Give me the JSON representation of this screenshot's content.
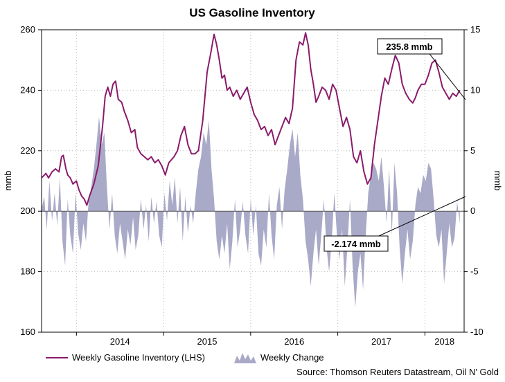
{
  "chart_data": {
    "type": "line+area",
    "title": "US Gasoline Inventory",
    "ylabel_left": "mmb",
    "ylabel_right": "mmb",
    "ylim_left": [
      160,
      260
    ],
    "ylim_right": [
      -10,
      15
    ],
    "yticks_left": [
      160,
      180,
      200,
      220,
      240,
      260
    ],
    "yticks_right": [
      -10,
      -5,
      0,
      5,
      10,
      15
    ],
    "x_domain": [
      2013.6,
      2018.45
    ],
    "x_boundaries": [
      2014.0,
      2015.0,
      2016.0,
      2017.0,
      2018.0
    ],
    "x_ticks": [
      {
        "label": "2014",
        "x": 2014.0
      },
      {
        "label": "2015",
        "x": 2015.0
      },
      {
        "label": "2016",
        "x": 2016.0
      },
      {
        "label": "2017",
        "x": 2017.0
      },
      {
        "label": "2018",
        "x": 2018.0
      }
    ],
    "series": [
      {
        "name": "Weekly Gasoline Inventory (LHS)",
        "axis": "left",
        "color": "#8b1a6b",
        "points": [
          [
            2013.6,
            211
          ],
          [
            2013.65,
            212.5
          ],
          [
            2013.68,
            211
          ],
          [
            2013.72,
            213
          ],
          [
            2013.76,
            214
          ],
          [
            2013.8,
            213
          ],
          [
            2013.83,
            218
          ],
          [
            2013.85,
            218.5
          ],
          [
            2013.88,
            214
          ],
          [
            2013.9,
            212
          ],
          [
            2013.93,
            211
          ],
          [
            2013.96,
            209
          ],
          [
            2014.0,
            210
          ],
          [
            2014.03,
            207
          ],
          [
            2014.06,
            205
          ],
          [
            2014.09,
            204
          ],
          [
            2014.12,
            202
          ],
          [
            2014.15,
            205
          ],
          [
            2014.2,
            209
          ],
          [
            2014.25,
            215
          ],
          [
            2014.3,
            228
          ],
          [
            2014.33,
            238
          ],
          [
            2014.36,
            241
          ],
          [
            2014.39,
            238
          ],
          [
            2014.42,
            242
          ],
          [
            2014.45,
            243
          ],
          [
            2014.48,
            237
          ],
          [
            2014.52,
            236
          ],
          [
            2014.55,
            233
          ],
          [
            2014.59,
            230
          ],
          [
            2014.63,
            226
          ],
          [
            2014.67,
            227
          ],
          [
            2014.7,
            221
          ],
          [
            2014.74,
            219
          ],
          [
            2014.78,
            218
          ],
          [
            2014.82,
            217
          ],
          [
            2014.86,
            218
          ],
          [
            2014.9,
            216
          ],
          [
            2014.94,
            217
          ],
          [
            2014.98,
            215
          ],
          [
            2015.02,
            212
          ],
          [
            2015.06,
            216
          ],
          [
            2015.12,
            218
          ],
          [
            2015.16,
            220
          ],
          [
            2015.2,
            225
          ],
          [
            2015.24,
            228
          ],
          [
            2015.28,
            222
          ],
          [
            2015.32,
            219
          ],
          [
            2015.36,
            219
          ],
          [
            2015.4,
            220
          ],
          [
            2015.45,
            230
          ],
          [
            2015.5,
            246
          ],
          [
            2015.54,
            252
          ],
          [
            2015.58,
            258.5
          ],
          [
            2015.61,
            255
          ],
          [
            2015.64,
            250
          ],
          [
            2015.67,
            244
          ],
          [
            2015.7,
            245
          ],
          [
            2015.73,
            240
          ],
          [
            2015.76,
            241
          ],
          [
            2015.8,
            238
          ],
          [
            2015.84,
            240
          ],
          [
            2015.88,
            237
          ],
          [
            2015.92,
            239
          ],
          [
            2015.96,
            241
          ],
          [
            2016.0,
            236
          ],
          [
            2016.04,
            232
          ],
          [
            2016.08,
            230
          ],
          [
            2016.12,
            227
          ],
          [
            2016.16,
            228
          ],
          [
            2016.2,
            225
          ],
          [
            2016.24,
            227
          ],
          [
            2016.28,
            222
          ],
          [
            2016.32,
            225
          ],
          [
            2016.36,
            228
          ],
          [
            2016.4,
            231
          ],
          [
            2016.44,
            229
          ],
          [
            2016.48,
            234
          ],
          [
            2016.52,
            250
          ],
          [
            2016.56,
            256
          ],
          [
            2016.6,
            255
          ],
          [
            2016.63,
            259
          ],
          [
            2016.66,
            255
          ],
          [
            2016.69,
            247
          ],
          [
            2016.72,
            242
          ],
          [
            2016.75,
            236
          ],
          [
            2016.78,
            238
          ],
          [
            2016.82,
            241
          ],
          [
            2016.86,
            240
          ],
          [
            2016.9,
            237
          ],
          [
            2016.94,
            242
          ],
          [
            2016.98,
            240
          ],
          [
            2017.02,
            234
          ],
          [
            2017.06,
            228
          ],
          [
            2017.1,
            231
          ],
          [
            2017.14,
            227
          ],
          [
            2017.18,
            218
          ],
          [
            2017.22,
            216
          ],
          [
            2017.26,
            220
          ],
          [
            2017.3,
            213
          ],
          [
            2017.34,
            209
          ],
          [
            2017.38,
            211
          ],
          [
            2017.42,
            222
          ],
          [
            2017.46,
            230
          ],
          [
            2017.5,
            238
          ],
          [
            2017.54,
            244
          ],
          [
            2017.58,
            242
          ],
          [
            2017.62,
            247
          ],
          [
            2017.66,
            251.5
          ],
          [
            2017.7,
            249
          ],
          [
            2017.74,
            242
          ],
          [
            2017.78,
            239
          ],
          [
            2017.82,
            237
          ],
          [
            2017.86,
            235.8
          ],
          [
            2017.89,
            237.5
          ],
          [
            2017.92,
            240
          ],
          [
            2017.96,
            242
          ],
          [
            2018.0,
            242
          ],
          [
            2018.04,
            245
          ],
          [
            2018.08,
            249
          ],
          [
            2018.12,
            250
          ],
          [
            2018.16,
            246
          ],
          [
            2018.2,
            241
          ],
          [
            2018.24,
            239
          ],
          [
            2018.28,
            237
          ],
          [
            2018.32,
            239
          ],
          [
            2018.36,
            238
          ],
          [
            2018.4,
            240
          ]
        ]
      },
      {
        "name": "Weekly Change",
        "axis": "right",
        "color": "#a9a9c8",
        "points": [
          [
            2013.6,
            0.2
          ],
          [
            2013.63,
            1.2
          ],
          [
            2013.66,
            -1.5
          ],
          [
            2013.69,
            2.5
          ],
          [
            2013.72,
            -0.8
          ],
          [
            2013.75,
            1.5
          ],
          [
            2013.78,
            -1.2
          ],
          [
            2013.81,
            2.8
          ],
          [
            2013.84,
            -2.5
          ],
          [
            2013.87,
            -4.5
          ],
          [
            2013.9,
            1.0
          ],
          [
            2013.93,
            -2.0
          ],
          [
            2013.96,
            -3.5
          ],
          [
            2013.99,
            1.5
          ],
          [
            2014.02,
            -1.8
          ],
          [
            2014.05,
            -3.2
          ],
          [
            2014.08,
            -1.0
          ],
          [
            2014.11,
            -2.5
          ],
          [
            2014.14,
            0.8
          ],
          [
            2014.17,
            2.0
          ],
          [
            2014.2,
            3.5
          ],
          [
            2014.23,
            5.5
          ],
          [
            2014.26,
            7.8
          ],
          [
            2014.29,
            5.5
          ],
          [
            2014.32,
            6.5
          ],
          [
            2014.35,
            2.0
          ],
          [
            2014.38,
            -1.5
          ],
          [
            2014.41,
            1.5
          ],
          [
            2014.44,
            -2.0
          ],
          [
            2014.47,
            -3.5
          ],
          [
            2014.5,
            -1.0
          ],
          [
            2014.53,
            -2.5
          ],
          [
            2014.56,
            -4.0
          ],
          [
            2014.59,
            -1.5
          ],
          [
            2014.62,
            -2.8
          ],
          [
            2014.65,
            -0.5
          ],
          [
            2014.68,
            -3.2
          ],
          [
            2014.71,
            -2.0
          ],
          [
            2014.74,
            1.0
          ],
          [
            2014.77,
            -1.5
          ],
          [
            2014.8,
            0.5
          ],
          [
            2014.83,
            -2.5
          ],
          [
            2014.86,
            1.2
          ],
          [
            2014.89,
            -1.0
          ],
          [
            2014.92,
            0.8
          ],
          [
            2014.95,
            -2.0
          ],
          [
            2014.98,
            -3.0
          ],
          [
            2015.01,
            1.5
          ],
          [
            2015.04,
            -0.8
          ],
          [
            2015.07,
            2.5
          ],
          [
            2015.1,
            0.5
          ],
          [
            2015.13,
            2.8
          ],
          [
            2015.16,
            -1.0
          ],
          [
            2015.19,
            2.0
          ],
          [
            2015.22,
            -2.5
          ],
          [
            2015.25,
            1.2
          ],
          [
            2015.28,
            -1.8
          ],
          [
            2015.31,
            0.5
          ],
          [
            2015.34,
            -1.0
          ],
          [
            2015.37,
            1.5
          ],
          [
            2015.4,
            3.5
          ],
          [
            2015.43,
            4.5
          ],
          [
            2015.46,
            6.5
          ],
          [
            2015.49,
            5.5
          ],
          [
            2015.52,
            7.5
          ],
          [
            2015.55,
            3.5
          ],
          [
            2015.58,
            1.0
          ],
          [
            2015.61,
            -2.5
          ],
          [
            2015.64,
            -4.0
          ],
          [
            2015.67,
            -2.0
          ],
          [
            2015.7,
            -3.5
          ],
          [
            2015.73,
            -1.0
          ],
          [
            2015.76,
            -4.8
          ],
          [
            2015.79,
            -2.5
          ],
          [
            2015.82,
            1.0
          ],
          [
            2015.85,
            -3.0
          ],
          [
            2015.88,
            -1.5
          ],
          [
            2015.91,
            0.8
          ],
          [
            2015.94,
            -2.0
          ],
          [
            2015.97,
            -3.5
          ],
          [
            2016.0,
            1.0
          ],
          [
            2016.03,
            -2.0
          ],
          [
            2016.06,
            0.5
          ],
          [
            2016.09,
            -3.5
          ],
          [
            2016.12,
            -4.5
          ],
          [
            2016.15,
            -1.5
          ],
          [
            2016.18,
            -3.0
          ],
          [
            2016.21,
            1.5
          ],
          [
            2016.24,
            -2.0
          ],
          [
            2016.27,
            -4.0
          ],
          [
            2016.3,
            0.5
          ],
          [
            2016.33,
            2.0
          ],
          [
            2016.36,
            -1.5
          ],
          [
            2016.39,
            1.8
          ],
          [
            2016.42,
            3.5
          ],
          [
            2016.45,
            5.5
          ],
          [
            2016.48,
            6.8
          ],
          [
            2016.51,
            4.5
          ],
          [
            2016.54,
            6.5
          ],
          [
            2016.57,
            3.0
          ],
          [
            2016.6,
            1.0
          ],
          [
            2016.63,
            -2.5
          ],
          [
            2016.66,
            -4.0
          ],
          [
            2016.69,
            -6.2
          ],
          [
            2016.72,
            -3.5
          ],
          [
            2016.75,
            -1.5
          ],
          [
            2016.78,
            -4.5
          ],
          [
            2016.81,
            -2.0
          ],
          [
            2016.84,
            1.0
          ],
          [
            2016.87,
            -3.0
          ],
          [
            2016.9,
            -5.0
          ],
          [
            2016.93,
            -2.5
          ],
          [
            2016.96,
            1.5
          ],
          [
            2016.99,
            -2.0
          ],
          [
            2017.02,
            -4.0
          ],
          [
            2017.05,
            -1.5
          ],
          [
            2017.08,
            -6.2
          ],
          [
            2017.11,
            -3.0
          ],
          [
            2017.14,
            1.0
          ],
          [
            2017.17,
            -4.5
          ],
          [
            2017.2,
            -8.0
          ],
          [
            2017.23,
            -5.0
          ],
          [
            2017.26,
            -3.5
          ],
          [
            2017.29,
            -6.5
          ],
          [
            2017.32,
            -2.0
          ],
          [
            2017.35,
            1.5
          ],
          [
            2017.38,
            3.0
          ],
          [
            2017.41,
            4.0
          ],
          [
            2017.44,
            3.5
          ],
          [
            2017.47,
            2.5
          ],
          [
            2017.5,
            4.5
          ],
          [
            2017.53,
            2.0
          ],
          [
            2017.56,
            -1.0
          ],
          [
            2017.59,
            3.5
          ],
          [
            2017.62,
            -2.0
          ],
          [
            2017.65,
            4.0
          ],
          [
            2017.68,
            1.5
          ],
          [
            2017.71,
            -3.0
          ],
          [
            2017.74,
            -6.0
          ],
          [
            2017.77,
            -3.5
          ],
          [
            2017.8,
            -1.5
          ],
          [
            2017.83,
            -4.0
          ],
          [
            2017.86,
            -2.5
          ],
          [
            2017.89,
            0.5
          ],
          [
            2017.92,
            2.0
          ],
          [
            2017.95,
            1.5
          ],
          [
            2017.98,
            3.0
          ],
          [
            2018.01,
            2.5
          ],
          [
            2018.04,
            4.0
          ],
          [
            2018.07,
            3.5
          ],
          [
            2018.1,
            1.0
          ],
          [
            2018.13,
            -2.0
          ],
          [
            2018.16,
            -3.0
          ],
          [
            2018.19,
            -1.5
          ],
          [
            2018.22,
            -6.0
          ],
          [
            2018.25,
            -3.5
          ],
          [
            2018.28,
            -1.0
          ],
          [
            2018.31,
            -3.0
          ],
          [
            2018.34,
            -2.174
          ],
          [
            2018.37,
            0.8
          ],
          [
            2018.4,
            -1.0
          ]
        ]
      }
    ],
    "legend": {
      "placement": "bottom-left",
      "entries": [
        "Weekly Gasoline Inventory (LHS)",
        "Weekly Change"
      ]
    },
    "annotations": [
      {
        "text": "235.8 mmb",
        "series": "Weekly Gasoline Inventory (LHS)",
        "x": 2017.86,
        "y": 235.8
      },
      {
        "text": "-2.174 mmb",
        "series": "Weekly Change",
        "x": 2018.34,
        "y": -2.174
      }
    ],
    "source": "Source: Thomson Reuters Datastream, Oil N' Gold"
  }
}
